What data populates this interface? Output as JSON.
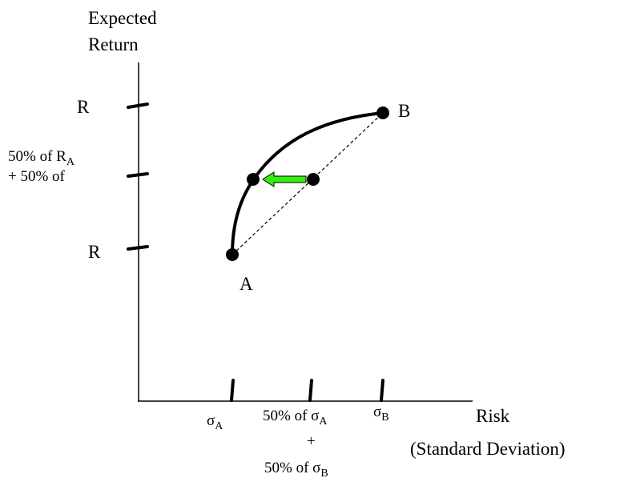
{
  "y_axis_title": [
    "Expected",
    "Return"
  ],
  "y_labels": {
    "top": "R",
    "middle": [
      {
        "text": "50% of R",
        "sub": "A"
      },
      {
        "text": "+ 50% of"
      }
    ],
    "bottom": "R"
  },
  "points": {
    "a": "A",
    "b": "B"
  },
  "x_axis_title": [
    "Risk",
    "(Standard Deviation)"
  ],
  "x_labels": {
    "left": {
      "text": "σ",
      "sub": "A"
    },
    "middle": [
      {
        "text": "50% of σ",
        "sub": "A"
      },
      {
        "text": "+"
      },
      {
        "text": "50% of σ",
        "sub": "B"
      }
    ],
    "right": {
      "text": "σ",
      "sub": "B"
    }
  }
}
